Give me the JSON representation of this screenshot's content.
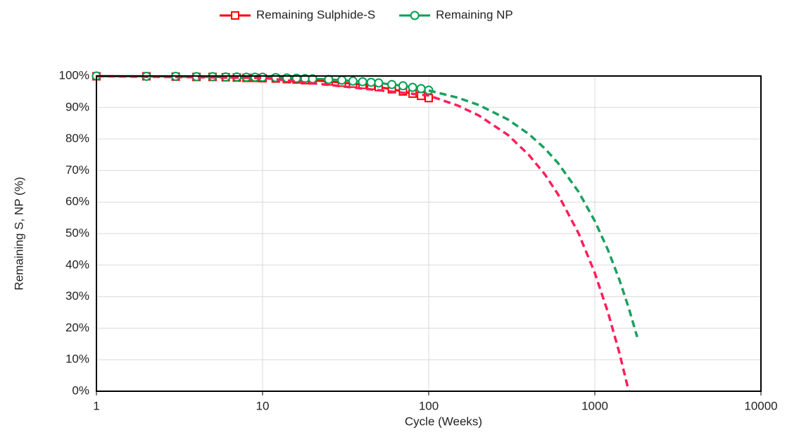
{
  "chart_data": {
    "type": "line",
    "xlabel": "Cycle (Weeks)",
    "ylabel": "Remaining S, NP (%)",
    "log_x": true,
    "grid": true,
    "legend": "top",
    "xlim": [
      1,
      10000
    ],
    "xticks": [
      1,
      10,
      100,
      1000,
      10000
    ],
    "ylim": [
      0,
      100
    ],
    "yticks": [
      {
        "value": 0,
        "label": "0%"
      },
      {
        "value": 10,
        "label": "10%"
      },
      {
        "value": 20,
        "label": "20%"
      },
      {
        "value": 30,
        "label": "30%"
      },
      {
        "value": 40,
        "label": "40%"
      },
      {
        "value": 50,
        "label": "50%"
      },
      {
        "value": 60,
        "label": "60%"
      },
      {
        "value": 70,
        "label": "70%"
      },
      {
        "value": 80,
        "label": "80%"
      },
      {
        "value": 90,
        "label": "90%"
      },
      {
        "value": 100,
        "label": "100%"
      }
    ],
    "series": [
      {
        "name": "Remaining Sulphide-S",
        "color": "#ff0000",
        "marker": "square",
        "x": [
          1,
          2,
          3,
          4,
          5,
          6,
          7,
          8,
          9,
          10,
          12,
          14,
          16,
          18,
          20,
          25,
          30,
          35,
          40,
          45,
          50,
          60,
          70,
          80,
          90,
          100
        ],
        "values": [
          99.9,
          99.9,
          99.8,
          99.7,
          99.7,
          99.6,
          99.5,
          99.4,
          99.4,
          99.3,
          99.2,
          99.0,
          98.9,
          98.7,
          98.6,
          98.3,
          97.9,
          97.6,
          97.2,
          96.9,
          96.5,
          95.8,
          95.1,
          94.4,
          93.7,
          93.0
        ]
      },
      {
        "name": "Remaining NP",
        "color": "#00a050",
        "marker": "circle",
        "x": [
          1,
          2,
          3,
          4,
          5,
          6,
          7,
          8,
          9,
          10,
          12,
          14,
          16,
          18,
          20,
          25,
          30,
          35,
          40,
          45,
          50,
          60,
          70,
          80,
          90,
          100
        ],
        "values": [
          100.0,
          99.9,
          99.9,
          99.8,
          99.8,
          99.7,
          99.7,
          99.6,
          99.6,
          99.6,
          99.5,
          99.4,
          99.3,
          99.2,
          99.1,
          98.9,
          98.7,
          98.4,
          98.2,
          98.0,
          97.8,
          97.3,
          96.9,
          96.4,
          96.0,
          95.5
        ]
      },
      {
        "color": "#ff1f5a",
        "dash": true,
        "x": [
          1,
          10,
          100,
          150,
          200,
          300,
          400,
          500,
          600,
          800,
          1000,
          1200,
          1400,
          1600
        ],
        "values": [
          99.9,
          99.4,
          93.8,
          90.6,
          87.5,
          81.3,
          75.0,
          68.8,
          62.5,
          50.0,
          37.5,
          25.0,
          12.5,
          0
        ]
      },
      {
        "color": "#1aa060",
        "dash": true,
        "x": [
          100,
          150,
          200,
          300,
          400,
          500,
          600,
          800,
          1000,
          1200,
          1400,
          1600,
          1800
        ],
        "values": [
          95.4,
          93.1,
          90.8,
          86.2,
          81.6,
          77.0,
          72.4,
          63.2,
          54.0,
          44.8,
          35.6,
          26.4,
          17.2
        ]
      }
    ]
  }
}
